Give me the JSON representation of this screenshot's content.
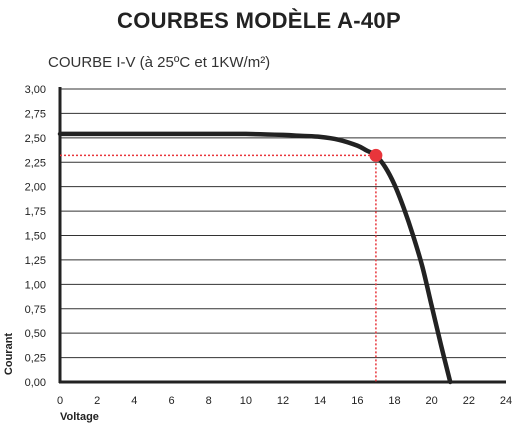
{
  "page": {
    "title": "COURBES MODÈLE A-40P",
    "subtitle": "COURBE I-V (à 25ºC et 1KW/m²)"
  },
  "chart_data": {
    "type": "line",
    "title": "COURBE I-V (à 25ºC et 1KW/m²)",
    "xlabel": "Voltage",
    "ylabel": "Courant",
    "xlim": [
      0,
      24
    ],
    "ylim": [
      0,
      3
    ],
    "x_ticks": [
      "0",
      "2",
      "4",
      "6",
      "8",
      "10",
      "12",
      "14",
      "16",
      "18",
      "20",
      "22",
      "24"
    ],
    "y_ticks": [
      "0,00",
      "0,25",
      "0,50",
      "0,75",
      "1,00",
      "1,25",
      "1,50",
      "1,75",
      "2,00",
      "2,25",
      "2,50",
      "2,75",
      "3,00"
    ],
    "grid": "horizontal",
    "series": [
      {
        "x": [
          0,
          2,
          4,
          6,
          8,
          10,
          12,
          13,
          14,
          15,
          16,
          16.5,
          17,
          17.5,
          18,
          18.5,
          19,
          19.5,
          20,
          20.5,
          21
        ],
        "y": [
          2.54,
          2.54,
          2.54,
          2.54,
          2.54,
          2.54,
          2.53,
          2.52,
          2.51,
          2.48,
          2.42,
          2.37,
          2.32,
          2.2,
          2.02,
          1.78,
          1.5,
          1.18,
          0.78,
          0.38,
          0.0
        ]
      }
    ],
    "max_power_point": {
      "x": 17,
      "y": 2.32
    },
    "colors": {
      "curve": "#222222",
      "marker": "#e8353b",
      "guide": "#e8353b",
      "grid": "#333333"
    }
  }
}
